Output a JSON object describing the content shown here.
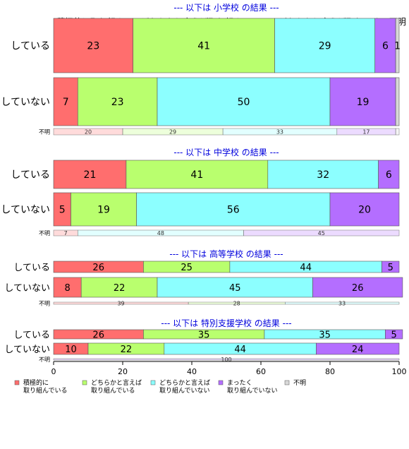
{
  "chart_data": {
    "type": "bar",
    "orientation": "horizontal-stacked-100",
    "xlim": [
      0,
      100
    ],
    "x_ticks": [
      0,
      20,
      40,
      60,
      80,
      100
    ],
    "column_headers": [
      "積極的に取り組ん..",
      "どちらかと言えば取り組んでい..",
      "どちらかと言えば取り..",
      "まっ不明"
    ],
    "series": [
      {
        "name": "積極的に取り組んでいる",
        "legend_lines": [
          "積極的に",
          "取り組んでいる"
        ],
        "color": "#ff6e6e"
      },
      {
        "name": "どちらかと言えば取り組んでいる",
        "legend_lines": [
          "どちらかと言えば",
          "取り組んでいる"
        ],
        "color": "#b9ff6e"
      },
      {
        "name": "どちらかと言えば取り組んでいない",
        "legend_lines": [
          "どちらかと言えば",
          "取り組んでいない"
        ],
        "color": "#8cffff"
      },
      {
        "name": "まったく取り組んでいない",
        "legend_lines": [
          "まったく",
          "取り組んでいない"
        ],
        "color": "#b46eff"
      },
      {
        "name": "不明",
        "legend_lines": [
          "不明"
        ],
        "color": "#d8d8d8"
      }
    ],
    "panels": [
      {
        "title": "--- 以下は 小学校 の結果 ---",
        "rows": [
          {
            "label": "している",
            "values": [
              23,
              41,
              29,
              6,
              1
            ],
            "labels": [
              "23",
              "41",
              "29",
              "6",
              "1"
            ]
          },
          {
            "label": "していない",
            "values": [
              7,
              23,
              50,
              19,
              1
            ],
            "labels": [
              "7",
              "23",
              "50",
              "19",
              ""
            ]
          }
        ],
        "unknown": {
          "label": "不明",
          "values": [
            20,
            29,
            33,
            17,
            1
          ],
          "labels": [
            "20",
            "29",
            "33",
            "17",
            ""
          ]
        }
      },
      {
        "title": "--- 以下は 中学校 の結果 ---",
        "rows": [
          {
            "label": "している",
            "values": [
              21,
              41,
              32,
              6,
              0
            ],
            "labels": [
              "21",
              "41",
              "32",
              "6",
              ""
            ]
          },
          {
            "label": "していない",
            "values": [
              5,
              19,
              56,
              20,
              0
            ],
            "labels": [
              "5",
              "19",
              "56",
              "20",
              ""
            ]
          }
        ],
        "unknown": {
          "label": "不明",
          "values": [
            7,
            0,
            48,
            45,
            0
          ],
          "labels": [
            "7",
            "",
            "48",
            "45",
            ""
          ]
        }
      },
      {
        "title": "--- 以下は 高等学校 の結果 ---",
        "rows": [
          {
            "label": "している",
            "values": [
              26,
              25,
              44,
              5,
              0
            ],
            "labels": [
              "26",
              "25",
              "44",
              "5",
              ""
            ]
          },
          {
            "label": "していない",
            "values": [
              8,
              22,
              45,
              26,
              0
            ],
            "labels": [
              "8",
              "22",
              "45",
              "26",
              ""
            ]
          }
        ],
        "unknown": {
          "label": "不明",
          "values": [
            39,
            28,
            33,
            0,
            0
          ],
          "labels": [
            "39",
            "28",
            "33",
            "",
            ""
          ]
        }
      },
      {
        "title": "--- 以下は 特別支援学校 の結果 ---",
        "rows": [
          {
            "label": "している",
            "values": [
              26,
              35,
              35,
              5,
              0
            ],
            "labels": [
              "26",
              "35",
              "35",
              "5",
              ""
            ]
          },
          {
            "label": "していない",
            "values": [
              10,
              22,
              44,
              24,
              0
            ],
            "labels": [
              "10",
              "22",
              "44",
              "24",
              ""
            ]
          }
        ],
        "unknown": {
          "label": "不明",
          "values": [
            0,
            0,
            0,
            100,
            0
          ],
          "labels": [
            "",
            "",
            "",
            "100",
            ""
          ]
        }
      }
    ]
  }
}
